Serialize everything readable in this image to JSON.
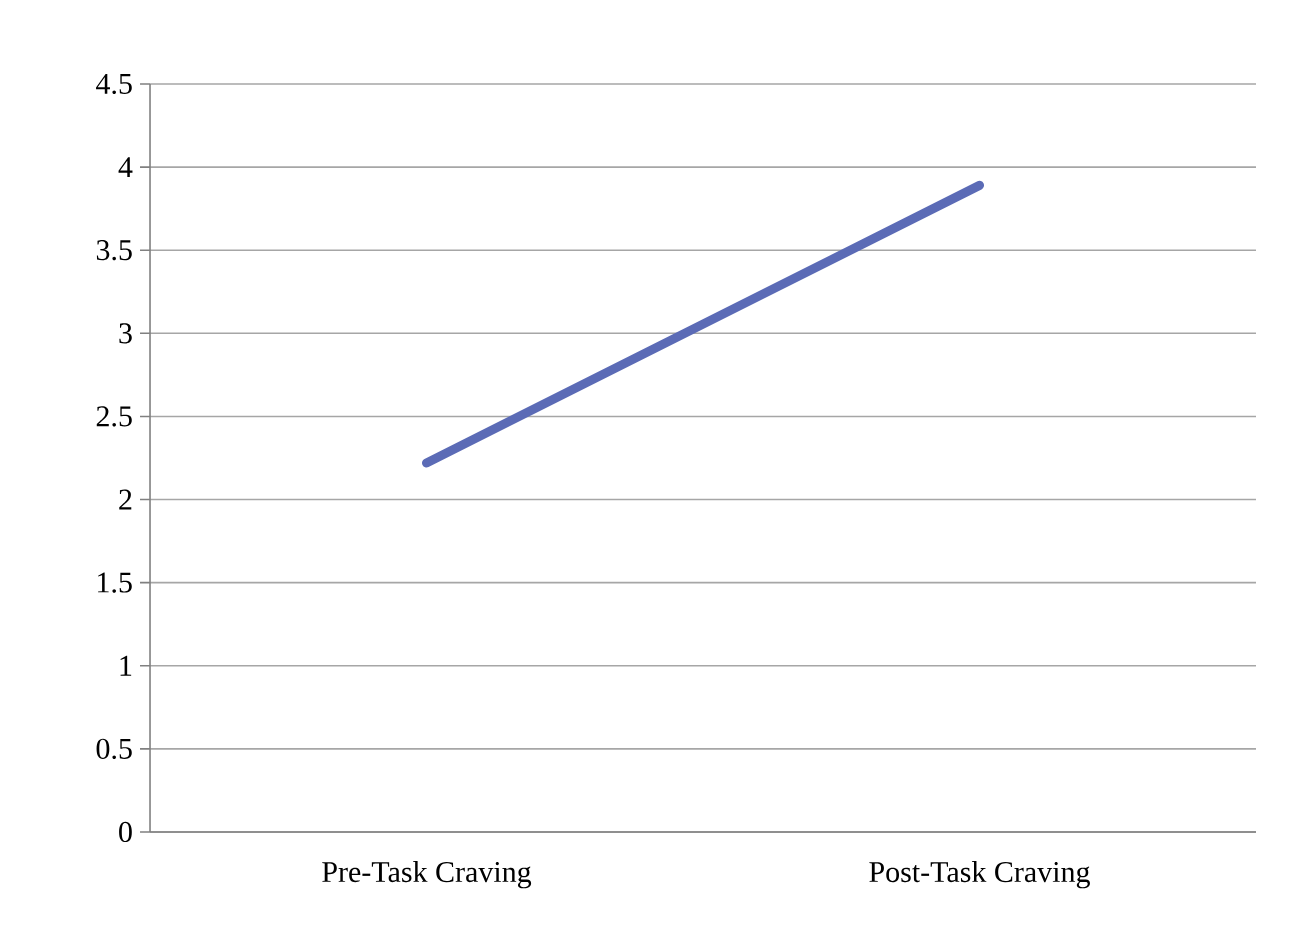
{
  "chart_data": {
    "type": "line",
    "categories": [
      "Pre-Task Craving",
      "Post-Task Craving"
    ],
    "series": [
      {
        "color": "#5b6bb6",
        "values": [
          2.22,
          3.89
        ]
      }
    ],
    "ylim": [
      0,
      4.5
    ],
    "yticks": [
      0,
      0.5,
      1,
      1.5,
      2,
      2.5,
      3,
      3.5,
      4,
      4.5
    ],
    "grid": "y",
    "marker": "none",
    "line_style": "solid"
  }
}
